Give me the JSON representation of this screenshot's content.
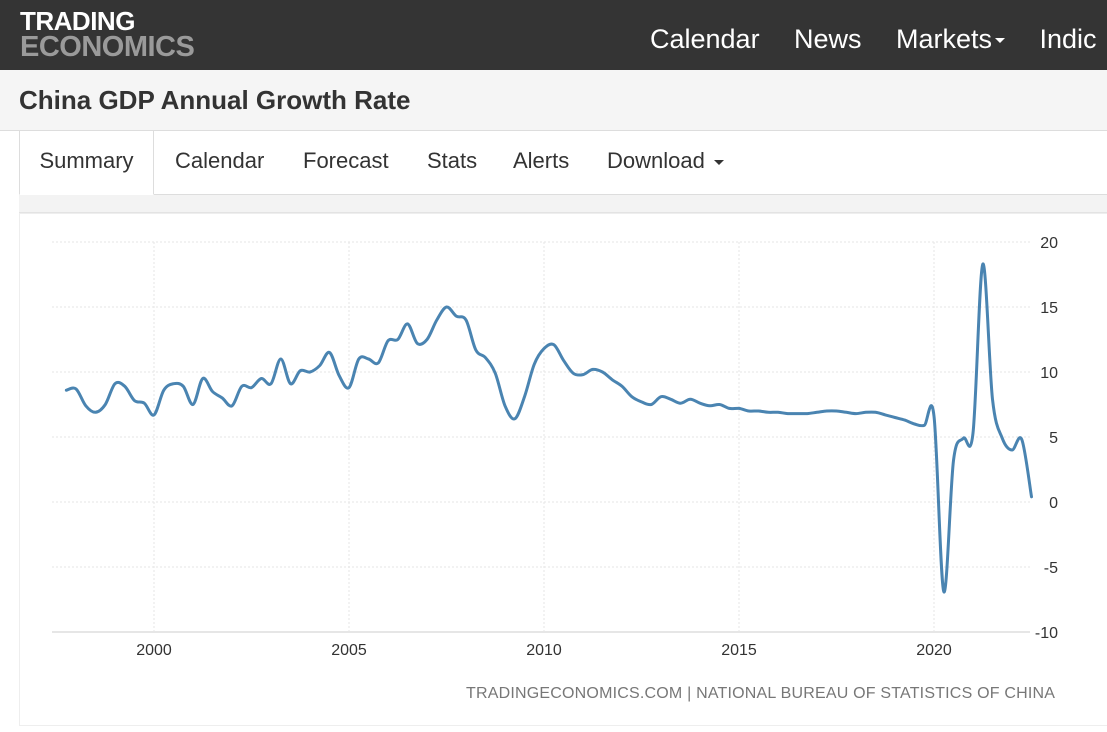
{
  "header": {
    "logo_line1": "TRADING",
    "logo_line2": "ECONOMICS",
    "nav": [
      "Calendar",
      "News",
      "Markets",
      "Indic"
    ]
  },
  "page": {
    "title": "China GDP Annual Growth Rate"
  },
  "tabs": [
    "Summary",
    "Calendar",
    "Forecast",
    "Stats",
    "Alerts",
    "Download"
  ],
  "colors": {
    "line": "#4a84b1",
    "topbar": "#343434"
  },
  "source": "TRADINGECONOMICS.COM | NATIONAL BUREAU OF STATISTICS OF CHINA",
  "chart_data": {
    "type": "line",
    "title": "",
    "xlabel": "",
    "ylabel": "",
    "x_ticks": [
      "2000",
      "2005",
      "2010",
      "2015",
      "2020"
    ],
    "y_ticks": [
      "20",
      "15",
      "10",
      "5",
      "0",
      "-5",
      "-10"
    ],
    "ylim": [
      -10,
      20
    ],
    "grid": true,
    "legend": "none",
    "series": [
      {
        "points": [
          [
            1997.75,
            8.6
          ],
          [
            1998.0,
            8.7
          ],
          [
            1998.25,
            7.4
          ],
          [
            1998.5,
            6.9
          ],
          [
            1998.75,
            7.5
          ],
          [
            1999.0,
            9.1
          ],
          [
            1999.25,
            8.9
          ],
          [
            1999.5,
            7.8
          ],
          [
            1999.75,
            7.6
          ],
          [
            2000.0,
            6.7
          ],
          [
            2000.25,
            8.6
          ],
          [
            2000.5,
            9.1
          ],
          [
            2000.75,
            8.9
          ],
          [
            2001.0,
            7.5
          ],
          [
            2001.25,
            9.5
          ],
          [
            2001.5,
            8.5
          ],
          [
            2001.75,
            8.0
          ],
          [
            2002.0,
            7.4
          ],
          [
            2002.25,
            8.9
          ],
          [
            2002.5,
            8.8
          ],
          [
            2002.75,
            9.5
          ],
          [
            2003.0,
            9.1
          ],
          [
            2003.25,
            11.0
          ],
          [
            2003.5,
            9.1
          ],
          [
            2003.75,
            10.1
          ],
          [
            2004.0,
            10.0
          ],
          [
            2004.25,
            10.5
          ],
          [
            2004.5,
            11.5
          ],
          [
            2004.75,
            9.7
          ],
          [
            2005.0,
            8.8
          ],
          [
            2005.25,
            11.0
          ],
          [
            2005.5,
            11.0
          ],
          [
            2005.75,
            10.7
          ],
          [
            2006.0,
            12.4
          ],
          [
            2006.25,
            12.5
          ],
          [
            2006.5,
            13.7
          ],
          [
            2006.75,
            12.2
          ],
          [
            2007.0,
            12.5
          ],
          [
            2007.25,
            14.0
          ],
          [
            2007.5,
            15.0
          ],
          [
            2007.75,
            14.3
          ],
          [
            2008.0,
            14.0
          ],
          [
            2008.25,
            11.7
          ],
          [
            2008.5,
            11.1
          ],
          [
            2008.75,
            9.9
          ],
          [
            2009.0,
            7.4
          ],
          [
            2009.25,
            6.4
          ],
          [
            2009.5,
            8.1
          ],
          [
            2009.75,
            10.6
          ],
          [
            2010.0,
            11.8
          ],
          [
            2010.25,
            12.1
          ],
          [
            2010.5,
            10.9
          ],
          [
            2010.75,
            9.9
          ],
          [
            2011.0,
            9.8
          ],
          [
            2011.25,
            10.2
          ],
          [
            2011.5,
            10.0
          ],
          [
            2011.75,
            9.4
          ],
          [
            2012.0,
            8.9
          ],
          [
            2012.25,
            8.1
          ],
          [
            2012.5,
            7.7
          ],
          [
            2012.75,
            7.5
          ],
          [
            2013.0,
            8.1
          ],
          [
            2013.25,
            7.9
          ],
          [
            2013.5,
            7.6
          ],
          [
            2013.75,
            7.9
          ],
          [
            2014.0,
            7.6
          ],
          [
            2014.25,
            7.4
          ],
          [
            2014.5,
            7.5
          ],
          [
            2014.75,
            7.2
          ],
          [
            2015.0,
            7.2
          ],
          [
            2015.25,
            7.0
          ],
          [
            2015.5,
            7.0
          ],
          [
            2015.75,
            6.9
          ],
          [
            2016.0,
            6.9
          ],
          [
            2016.25,
            6.8
          ],
          [
            2016.5,
            6.8
          ],
          [
            2016.75,
            6.8
          ],
          [
            2017.0,
            6.9
          ],
          [
            2017.25,
            7.0
          ],
          [
            2017.5,
            7.0
          ],
          [
            2017.75,
            6.9
          ],
          [
            2018.0,
            6.8
          ],
          [
            2018.25,
            6.9
          ],
          [
            2018.5,
            6.9
          ],
          [
            2018.75,
            6.7
          ],
          [
            2019.0,
            6.5
          ],
          [
            2019.25,
            6.3
          ],
          [
            2019.5,
            6.0
          ],
          [
            2019.75,
            5.9
          ],
          [
            2020.0,
            6.6
          ],
          [
            2020.25,
            -6.9
          ],
          [
            2020.5,
            3.2
          ],
          [
            2020.75,
            4.9
          ],
          [
            2021.0,
            5.3
          ],
          [
            2021.25,
            18.3
          ],
          [
            2021.5,
            7.9
          ],
          [
            2021.75,
            4.9
          ],
          [
            2022.0,
            4.0
          ],
          [
            2022.25,
            4.8
          ],
          [
            2022.5,
            0.4
          ]
        ]
      }
    ]
  }
}
